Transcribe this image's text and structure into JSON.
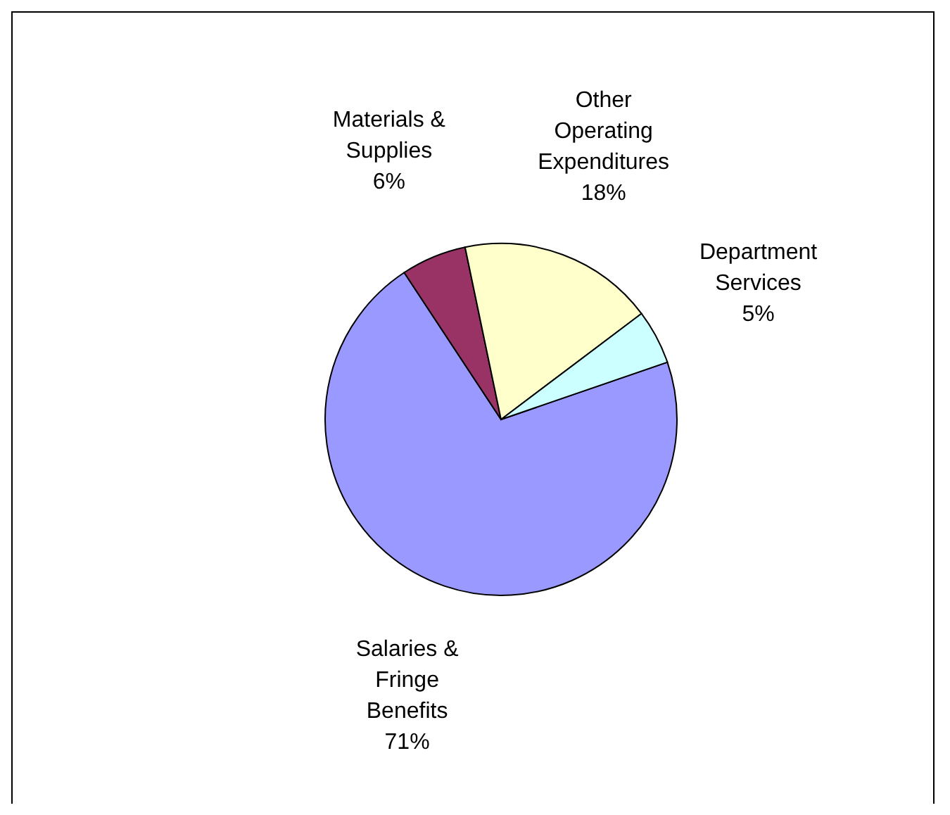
{
  "chart_data": {
    "type": "pie",
    "categories": [
      "Salaries & Fringe Benefits",
      "Materials & Supplies",
      "Other Operating Expenditures",
      "Department Services"
    ],
    "values": [
      71,
      6,
      18,
      5
    ],
    "colors": [
      "#9999ff",
      "#993366",
      "#ffffcc",
      "#ccffff"
    ],
    "value_labels": [
      "71%",
      "6%",
      "18%",
      "5%"
    ]
  }
}
